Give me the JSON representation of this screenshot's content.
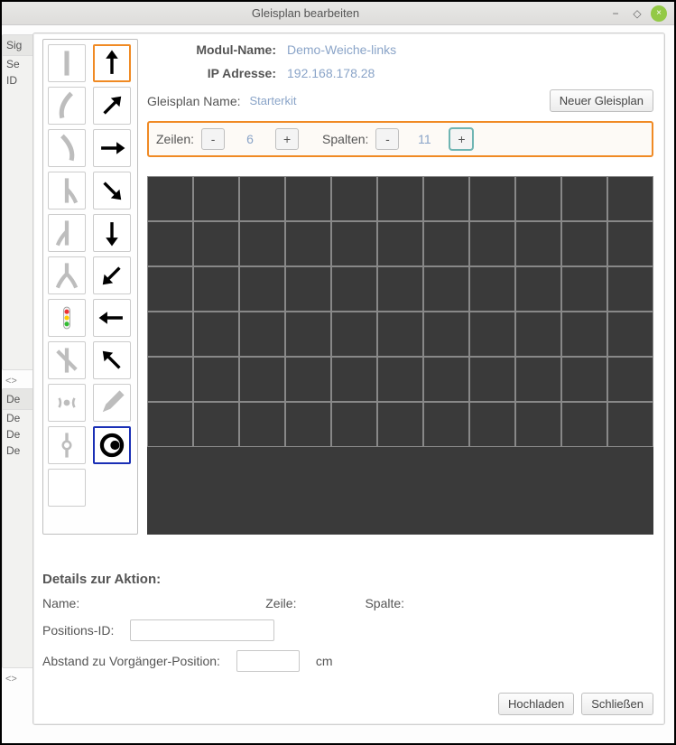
{
  "window": {
    "title": "Gleisplan bearbeiten"
  },
  "leftStrip": {
    "tabs1": [
      "Sig"
    ],
    "rows1": [
      "Se",
      "ID"
    ],
    "marker1": "<>",
    "tabs2": [
      "De"
    ],
    "rows2": [
      "De",
      "De",
      "De"
    ],
    "marker2": "<>"
  },
  "form": {
    "modulLabel": "Modul-Name:",
    "modulValue": "Demo-Weiche-links",
    "ipLabel": "IP Adresse:",
    "ipValue": "192.168.178.28",
    "gpLabel": "Gleisplan Name:",
    "gpValue": "Starterkit",
    "newGpBtn": "Neuer Gleisplan",
    "rowsLabel": "Zeilen:",
    "rowsValue": "6",
    "colsLabel": "Spalten:",
    "colsValue": "11",
    "minus": "-",
    "plus": "+"
  },
  "grid": {
    "rows": 6,
    "cols": 11,
    "cellBg": "#3a3a3a",
    "cellBorder": "#888888"
  },
  "details": {
    "heading": "Details zur Aktion:",
    "nameLabel": "Name:",
    "zeileLabel": "Zeile:",
    "spalteLabel": "Spalte:",
    "posIdLabel": "Positions-ID:",
    "abstandLabel": "Abstand zu Vorgänger-Position:",
    "cm": "cm"
  },
  "footer": {
    "upload": "Hochladen",
    "close": "Schließen"
  },
  "palette": [
    {
      "name": "track-straight-icon",
      "svg": "vline-gray"
    },
    {
      "name": "arrow-up-icon",
      "svg": "arrow-n",
      "sel": "orange"
    },
    {
      "name": "curve-left-icon",
      "svg": "curve-l"
    },
    {
      "name": "arrow-ne-icon",
      "svg": "arrow-ne"
    },
    {
      "name": "curve-right-icon",
      "svg": "curve-r"
    },
    {
      "name": "arrow-e-icon",
      "svg": "arrow-e"
    },
    {
      "name": "switch-r-icon",
      "svg": "switch-r"
    },
    {
      "name": "arrow-se-icon",
      "svg": "arrow-se"
    },
    {
      "name": "switch-l-icon",
      "svg": "switch-l"
    },
    {
      "name": "arrow-s-icon",
      "svg": "arrow-s"
    },
    {
      "name": "switch-y-icon",
      "svg": "switch-y"
    },
    {
      "name": "arrow-sw-icon",
      "svg": "arrow-sw"
    },
    {
      "name": "signal-icon",
      "svg": "signal"
    },
    {
      "name": "arrow-w-icon",
      "svg": "arrow-w"
    },
    {
      "name": "cross-icon",
      "svg": "cross"
    },
    {
      "name": "arrow-nw-icon",
      "svg": "arrow-nw"
    },
    {
      "name": "sensor-icon",
      "svg": "sensor"
    },
    {
      "name": "pencil-icon",
      "svg": "pencil"
    },
    {
      "name": "node-icon",
      "svg": "node"
    },
    {
      "name": "eye-icon",
      "svg": "eye",
      "sel": "blue"
    },
    {
      "name": "empty-tool",
      "svg": "empty"
    }
  ]
}
